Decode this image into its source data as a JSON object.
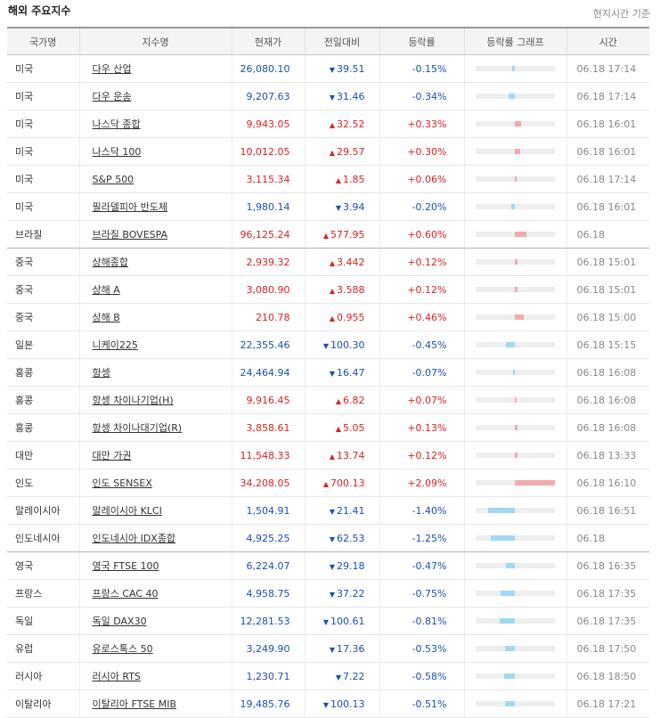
{
  "panel": {
    "title": "해외 주요지수",
    "note": "현지시간 기준"
  },
  "columns": [
    "국가명",
    "지수명",
    "현재가",
    "전일대비",
    "등락률",
    "등락률 그래프",
    "시간"
  ],
  "graph_max_pct": 2.09,
  "colors": {
    "up": "#d22222",
    "down": "#1a4fb5",
    "bar_up": "#f3a9ad",
    "bar_down": "#9fd9f4"
  },
  "rows": [
    {
      "country": "미국",
      "name": "다우 산업",
      "price": "26,080.10",
      "change": "39.51",
      "dir": "down",
      "rate": "-0.15%",
      "pct": -0.15,
      "time": "06.18 17:14"
    },
    {
      "country": "미국",
      "name": "다우 운송",
      "price": "9,207.63",
      "change": "31.46",
      "dir": "down",
      "rate": "-0.34%",
      "pct": -0.34,
      "time": "06.18 17:14"
    },
    {
      "country": "미국",
      "name": "나스닥 종합",
      "price": "9,943.05",
      "change": "32.52",
      "dir": "up",
      "rate": "+0.33%",
      "pct": 0.33,
      "time": "06.18 16:01"
    },
    {
      "country": "미국",
      "name": "나스닥 100",
      "price": "10,012.05",
      "change": "29.57",
      "dir": "up",
      "rate": "+0.30%",
      "pct": 0.3,
      "time": "06.18 16:01"
    },
    {
      "country": "미국",
      "name": "S&P 500",
      "price": "3,115.34",
      "change": "1.85",
      "dir": "up",
      "rate": "+0.06%",
      "pct": 0.06,
      "time": "06.18 17:14"
    },
    {
      "country": "미국",
      "name": "필라델피아 반도체",
      "price": "1,980.14",
      "change": "3.94",
      "dir": "down",
      "rate": "-0.20%",
      "pct": -0.2,
      "time": "06.18 16:01"
    },
    {
      "country": "브라질",
      "name": "브라질 BOVESPA",
      "price": "96,125.24",
      "change": "577.95",
      "dir": "up",
      "rate": "+0.60%",
      "pct": 0.6,
      "time": "06.18",
      "group_end": true
    },
    {
      "country": "중국",
      "name": "상해종합",
      "price": "2,939.32",
      "change": "3.442",
      "dir": "up",
      "rate": "+0.12%",
      "pct": 0.12,
      "time": "06.18 15:01"
    },
    {
      "country": "중국",
      "name": "상해 A",
      "price": "3,080.90",
      "change": "3.588",
      "dir": "up",
      "rate": "+0.12%",
      "pct": 0.12,
      "time": "06.18 15:01"
    },
    {
      "country": "중국",
      "name": "상해 B",
      "price": "210.78",
      "change": "0.955",
      "dir": "up",
      "rate": "+0.46%",
      "pct": 0.46,
      "time": "06.18 15:00"
    },
    {
      "country": "일본",
      "name": "니케이225",
      "price": "22,355.46",
      "change": "100.30",
      "dir": "down",
      "rate": "-0.45%",
      "pct": -0.45,
      "time": "06.18 15:15"
    },
    {
      "country": "홍콩",
      "name": "항셍",
      "price": "24,464.94",
      "change": "16.47",
      "dir": "down",
      "rate": "-0.07%",
      "pct": -0.07,
      "time": "06.18 16:08"
    },
    {
      "country": "홍콩",
      "name": "항셍 차이나기업(H)",
      "price": "9,916.45",
      "change": "6.82",
      "dir": "up",
      "rate": "+0.07%",
      "pct": 0.07,
      "time": "06.18 16:08"
    },
    {
      "country": "홍콩",
      "name": "항셍 차이나대기업(R)",
      "price": "3,858.61",
      "change": "5.05",
      "dir": "up",
      "rate": "+0.13%",
      "pct": 0.13,
      "time": "06.18 16:08"
    },
    {
      "country": "대만",
      "name": "대만 가권",
      "price": "11,548.33",
      "change": "13.74",
      "dir": "up",
      "rate": "+0.12%",
      "pct": 0.12,
      "time": "06.18 13:33"
    },
    {
      "country": "인도",
      "name": "인도 SENSEX",
      "price": "34,208.05",
      "change": "700.13",
      "dir": "up",
      "rate": "+2.09%",
      "pct": 2.09,
      "time": "06.18 16:10"
    },
    {
      "country": "말레이시아",
      "name": "말레이시아 KLCI",
      "price": "1,504.91",
      "change": "21.41",
      "dir": "down",
      "rate": "-1.40%",
      "pct": -1.4,
      "time": "06.18 16:51"
    },
    {
      "country": "인도네시아",
      "name": "인도네시아 IDX종합",
      "price": "4,925.25",
      "change": "62.53",
      "dir": "down",
      "rate": "-1.25%",
      "pct": -1.25,
      "time": "06.18",
      "group_end": true
    },
    {
      "country": "영국",
      "name": "영국 FTSE 100",
      "price": "6,224.07",
      "change": "29.18",
      "dir": "down",
      "rate": "-0.47%",
      "pct": -0.47,
      "time": "06.18 16:35"
    },
    {
      "country": "프랑스",
      "name": "프랑스 CAC 40",
      "price": "4,958.75",
      "change": "37.22",
      "dir": "down",
      "rate": "-0.75%",
      "pct": -0.75,
      "time": "06.18 17:35"
    },
    {
      "country": "독일",
      "name": "독일 DAX30",
      "price": "12,281.53",
      "change": "100.61",
      "dir": "down",
      "rate": "-0.81%",
      "pct": -0.81,
      "time": "06.18 17:35"
    },
    {
      "country": "유럽",
      "name": "유로스톡스 50",
      "price": "3,249.90",
      "change": "17.36",
      "dir": "down",
      "rate": "-0.53%",
      "pct": -0.53,
      "time": "06.18 17:50"
    },
    {
      "country": "러시아",
      "name": "러시아 RTS",
      "price": "1,230.71",
      "change": "7.22",
      "dir": "down",
      "rate": "-0.58%",
      "pct": -0.58,
      "time": "06.18 18:50"
    },
    {
      "country": "이탈리아",
      "name": "이탈리아 FTSE MIB",
      "price": "19,485.76",
      "change": "100.13",
      "dir": "down",
      "rate": "-0.51%",
      "pct": -0.51,
      "time": "06.18 17:21"
    }
  ]
}
